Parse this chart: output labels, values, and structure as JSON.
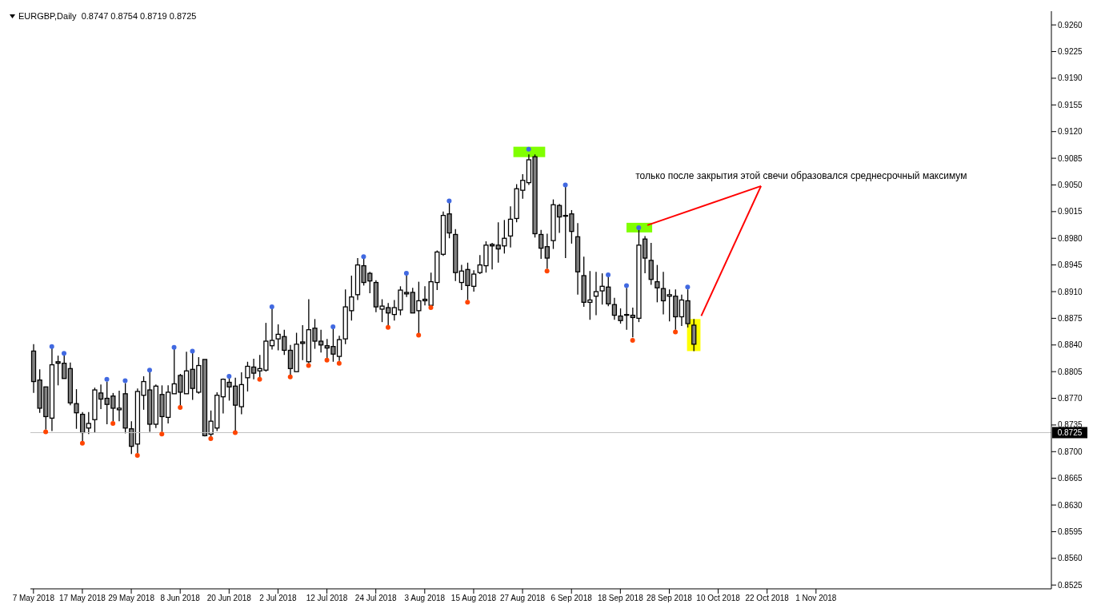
{
  "chart_data": {
    "type": "candlestick",
    "title": "EURGBP,Daily  0.8747 0.8754 0.8719 0.8725",
    "annotations": [
      "только после закрытия этой свечи образовался среднесрочный максимум"
    ],
    "categories": [
      "7 May 2018",
      null,
      null,
      null,
      null,
      null,
      null,
      null,
      "17 May 2018",
      null,
      null,
      null,
      null,
      null,
      null,
      null,
      "29 May 2018",
      null,
      null,
      null,
      null,
      null,
      null,
      null,
      "8 Jun 2018",
      null,
      null,
      null,
      null,
      null,
      null,
      null,
      "20 Jun 2018",
      null,
      null,
      null,
      null,
      null,
      null,
      null,
      "2 Jul 2018",
      null,
      null,
      null,
      null,
      null,
      null,
      null,
      "12 Jul 2018",
      null,
      null,
      null,
      null,
      null,
      null,
      null,
      "24 Jul 2018",
      null,
      null,
      null,
      null,
      null,
      null,
      null,
      "3 Aug 2018",
      null,
      null,
      null,
      null,
      null,
      null,
      null,
      "15 Aug 2018",
      null,
      null,
      null,
      null,
      null,
      null,
      null,
      "27 Aug 2018",
      null,
      null,
      null,
      null,
      null,
      null,
      null,
      "6 Sep 2018",
      null,
      null,
      null,
      null,
      null,
      null,
      null,
      "18 Sep 2018",
      null,
      null,
      null,
      null,
      null,
      null,
      null,
      "28 Sep 2018",
      null,
      null,
      null,
      null,
      null,
      null,
      null,
      "10 Oct 2018",
      null,
      null,
      null,
      null,
      null,
      null,
      null,
      "22 Oct 2018",
      null,
      null,
      null,
      null,
      null,
      null,
      null,
      "1 Nov 2018",
      null,
      null,
      null,
      null,
      null,
      null,
      null,
      null,
      null,
      null,
      null,
      null,
      null,
      null,
      null,
      null,
      null,
      null,
      null,
      null,
      null,
      null,
      null,
      null,
      null,
      null,
      null,
      null,
      null,
      null,
      null,
      null,
      null,
      null,
      null,
      null,
      null,
      null
    ],
    "ohlc": [
      [
        0.8832,
        0.8841,
        0.8777,
        0.8792
      ],
      [
        0.8794,
        0.8808,
        0.8751,
        0.8757
      ],
      [
        0.8785,
        0.8785,
        0.8729,
        0.8746
      ],
      [
        0.8744,
        0.8836,
        0.8727,
        0.8814
      ],
      [
        0.8818,
        0.8826,
        0.8787,
        0.8816
      ],
      [
        0.8816,
        0.8827,
        0.8796,
        0.8796
      ],
      [
        0.8809,
        0.8817,
        0.8761,
        0.8764
      ],
      [
        0.8763,
        0.8782,
        0.873,
        0.8751
      ],
      [
        0.8749,
        0.8752,
        0.8714,
        0.8725
      ],
      [
        0.8731,
        0.8752,
        0.8723,
        0.8737
      ],
      [
        0.8742,
        0.8784,
        0.8725,
        0.8781
      ],
      [
        0.8777,
        0.8788,
        0.8756,
        0.8769
      ],
      [
        0.877,
        0.8792,
        0.8736,
        0.8762
      ],
      [
        0.8773,
        0.8777,
        0.874,
        0.8757
      ],
      [
        0.8755,
        0.878,
        0.874,
        0.8757
      ],
      [
        0.8776,
        0.879,
        0.8724,
        0.8731
      ],
      [
        0.873,
        0.874,
        0.8697,
        0.8707
      ],
      [
        0.871,
        0.8783,
        0.8698,
        0.8779
      ],
      [
        0.8774,
        0.8799,
        0.8755,
        0.8792
      ],
      [
        0.8781,
        0.8804,
        0.8726,
        0.8736
      ],
      [
        0.8736,
        0.8788,
        0.8731,
        0.8786
      ],
      [
        0.8775,
        0.8787,
        0.8726,
        0.8746
      ],
      [
        0.8745,
        0.8787,
        0.8737,
        0.8778
      ],
      [
        0.8776,
        0.8835,
        0.8776,
        0.8789
      ],
      [
        0.88,
        0.8802,
        0.876,
        0.8778
      ],
      [
        0.8776,
        0.8831,
        0.8776,
        0.8806
      ],
      [
        0.8808,
        0.883,
        0.8768,
        0.8783
      ],
      [
        0.8778,
        0.8824,
        0.8776,
        0.8813
      ],
      [
        0.8821,
        0.8821,
        0.872,
        0.8721
      ],
      [
        0.8723,
        0.8754,
        0.8719,
        0.874
      ],
      [
        0.8731,
        0.8778,
        0.8727,
        0.8774
      ],
      [
        0.8772,
        0.8796,
        0.875,
        0.8795
      ],
      [
        0.8791,
        0.8797,
        0.8767,
        0.8785
      ],
      [
        0.8786,
        0.8797,
        0.8727,
        0.8761
      ],
      [
        0.8759,
        0.8804,
        0.8749,
        0.8788
      ],
      [
        0.8797,
        0.8818,
        0.8779,
        0.8812
      ],
      [
        0.8811,
        0.8822,
        0.8795,
        0.8803
      ],
      [
        0.8806,
        0.8827,
        0.8797,
        0.8809
      ],
      [
        0.8807,
        0.8869,
        0.8805,
        0.8845
      ],
      [
        0.8839,
        0.8888,
        0.8834,
        0.8846
      ],
      [
        0.8848,
        0.8867,
        0.8833,
        0.8854
      ],
      [
        0.8851,
        0.886,
        0.8827,
        0.8833
      ],
      [
        0.8833,
        0.884,
        0.88,
        0.8809
      ],
      [
        0.8805,
        0.8856,
        0.8805,
        0.8841
      ],
      [
        0.8844,
        0.8866,
        0.882,
        0.8842
      ],
      [
        0.8818,
        0.89,
        0.8816,
        0.886
      ],
      [
        0.8862,
        0.8874,
        0.8835,
        0.8845
      ],
      [
        0.8845,
        0.886,
        0.883,
        0.884
      ],
      [
        0.8839,
        0.8848,
        0.8822,
        0.8836
      ],
      [
        0.8838,
        0.8862,
        0.8818,
        0.8828
      ],
      [
        0.8825,
        0.8852,
        0.8819,
        0.8847
      ],
      [
        0.8848,
        0.8913,
        0.8841,
        0.889
      ],
      [
        0.8885,
        0.8931,
        0.8872,
        0.8903
      ],
      [
        0.8906,
        0.8954,
        0.8899,
        0.8945
      ],
      [
        0.8944,
        0.8954,
        0.8918,
        0.8922
      ],
      [
        0.8934,
        0.8936,
        0.8908,
        0.8924
      ],
      [
        0.8922,
        0.8925,
        0.8883,
        0.889
      ],
      [
        0.8887,
        0.89,
        0.887,
        0.8891
      ],
      [
        0.8889,
        0.8895,
        0.8865,
        0.8882
      ],
      [
        0.888,
        0.8899,
        0.8872,
        0.8889
      ],
      [
        0.8886,
        0.8917,
        0.8879,
        0.8912
      ],
      [
        0.8909,
        0.8932,
        0.8903,
        0.8907
      ],
      [
        0.8909,
        0.8915,
        0.8882,
        0.8882
      ],
      [
        0.8885,
        0.8923,
        0.8855,
        0.8898
      ],
      [
        0.89,
        0.8917,
        0.8892,
        0.8898
      ],
      [
        0.8892,
        0.8935,
        0.8891,
        0.8923
      ],
      [
        0.8922,
        0.8964,
        0.8912,
        0.8962
      ],
      [
        0.8959,
        0.9015,
        0.8957,
        0.901
      ],
      [
        0.9012,
        0.9027,
        0.898,
        0.8987
      ],
      [
        0.8985,
        0.8992,
        0.8924,
        0.8935
      ],
      [
        0.8922,
        0.8945,
        0.8912,
        0.8937
      ],
      [
        0.8939,
        0.8948,
        0.8899,
        0.8918
      ],
      [
        0.8917,
        0.8938,
        0.891,
        0.8933
      ],
      [
        0.8935,
        0.8958,
        0.8933,
        0.8945
      ],
      [
        0.8944,
        0.8976,
        0.8935,
        0.8971
      ],
      [
        0.8972,
        0.8974,
        0.8939,
        0.897
      ],
      [
        0.8971,
        0.9001,
        0.8948,
        0.8966
      ],
      [
        0.897,
        0.9004,
        0.896,
        0.898
      ],
      [
        0.8983,
        0.9022,
        0.8968,
        0.9005
      ],
      [
        0.9006,
        0.9051,
        0.9001,
        0.9045
      ],
      [
        0.9043,
        0.9064,
        0.9032,
        0.9056
      ],
      [
        0.9053,
        0.909,
        0.905,
        0.9083
      ],
      [
        0.9087,
        0.909,
        0.8981,
        0.8986
      ],
      [
        0.8985,
        0.8991,
        0.8953,
        0.8967
      ],
      [
        0.8969,
        0.8986,
        0.894,
        0.8954
      ],
      [
        0.8977,
        0.9031,
        0.8966,
        0.9024
      ],
      [
        0.9023,
        0.9025,
        0.8987,
        0.9008
      ],
      [
        0.901,
        0.9048,
        0.8954,
        0.901
      ],
      [
        0.9012,
        0.9017,
        0.8973,
        0.8989
      ],
      [
        0.8982,
        0.9,
        0.8906,
        0.8936
      ],
      [
        0.8931,
        0.8956,
        0.889,
        0.8896
      ],
      [
        0.8896,
        0.8937,
        0.8873,
        0.8899
      ],
      [
        0.8904,
        0.8936,
        0.8879,
        0.891
      ],
      [
        0.8911,
        0.8934,
        0.8893,
        0.8917
      ],
      [
        0.8916,
        0.8931,
        0.8891,
        0.8894
      ],
      [
        0.8893,
        0.8902,
        0.8873,
        0.8879
      ],
      [
        0.8878,
        0.8888,
        0.8868,
        0.8872
      ],
      [
        0.888,
        0.8915,
        0.886,
        0.8879
      ],
      [
        0.8879,
        0.8889,
        0.885,
        0.8876
      ],
      [
        0.8875,
        0.8991,
        0.887,
        0.8971
      ],
      [
        0.8979,
        0.8983,
        0.8934,
        0.8954
      ],
      [
        0.8951,
        0.8974,
        0.8919,
        0.8926
      ],
      [
        0.8923,
        0.8945,
        0.8896,
        0.8915
      ],
      [
        0.8914,
        0.8936,
        0.888,
        0.8898
      ],
      [
        0.8904,
        0.8913,
        0.8871,
        0.8906
      ],
      [
        0.8904,
        0.8913,
        0.886,
        0.8877
      ],
      [
        0.8877,
        0.8906,
        0.8865,
        0.8899
      ],
      [
        0.8898,
        0.8913,
        0.8863,
        0.8868
      ],
      [
        0.8866,
        0.8874,
        0.8832,
        0.8841
      ],
      null,
      null,
      null,
      null,
      null,
      null,
      null,
      null,
      null,
      null,
      null,
      null,
      null,
      null,
      null,
      null,
      null,
      null,
      null,
      null,
      null,
      null,
      null,
      null,
      null,
      null,
      null,
      null,
      null,
      null,
      null,
      null,
      null,
      null,
      null,
      null,
      null,
      null,
      null,
      null,
      null,
      null,
      null,
      null,
      null,
      null,
      null,
      null,
      null,
      null,
      null,
      null,
      null,
      null,
      null,
      null,
      null,
      null
    ],
    "series": [
      {
        "type": "scatter",
        "color": "#4169e1",
        "values": [
          null,
          null,
          null,
          0.8838,
          null,
          0.8829,
          null,
          null,
          null,
          null,
          null,
          null,
          0.8795,
          null,
          null,
          0.8793,
          null,
          null,
          null,
          0.8807,
          null,
          null,
          null,
          0.8837,
          null,
          null,
          0.8832,
          null,
          null,
          null,
          null,
          null,
          0.8799,
          null,
          null,
          null,
          null,
          null,
          null,
          0.889,
          null,
          null,
          null,
          null,
          null,
          null,
          null,
          null,
          null,
          0.8864,
          null,
          null,
          null,
          null,
          0.8956,
          null,
          null,
          null,
          null,
          null,
          null,
          0.8934,
          null,
          null,
          null,
          null,
          null,
          null,
          0.9029,
          null,
          null,
          null,
          null,
          null,
          null,
          null,
          null,
          null,
          null,
          null,
          null,
          0.9097,
          null,
          null,
          null,
          null,
          null,
          0.905,
          null,
          null,
          null,
          null,
          null,
          null,
          0.8932,
          null,
          null,
          0.8918,
          null,
          0.8994,
          null,
          null,
          null,
          null,
          null,
          null,
          null,
          0.8916,
          null,
          null,
          null,
          null,
          null,
          null,
          null,
          null,
          null,
          null,
          null,
          null,
          null,
          null,
          null,
          null,
          null,
          null,
          null,
          null,
          null,
          null,
          null,
          null,
          null,
          null,
          null,
          null,
          null,
          null,
          null,
          null,
          null,
          null,
          null,
          null,
          null,
          null,
          null,
          null,
          null,
          null,
          null,
          null,
          null,
          null,
          null,
          null,
          null,
          null,
          null,
          null,
          null,
          null,
          null,
          null,
          null,
          null,
          null
        ]
      },
      {
        "type": "scatter",
        "color": "#ff4500",
        "values": [
          null,
          null,
          0.8726,
          null,
          null,
          null,
          null,
          null,
          0.8711,
          null,
          null,
          null,
          null,
          0.8737,
          null,
          null,
          null,
          0.8695,
          null,
          null,
          null,
          0.8723,
          null,
          null,
          0.8758,
          null,
          null,
          null,
          null,
          0.8717,
          null,
          null,
          null,
          0.8725,
          null,
          null,
          null,
          0.8795,
          null,
          null,
          null,
          null,
          0.8798,
          null,
          null,
          0.8813,
          null,
          null,
          0.882,
          null,
          0.8816,
          null,
          null,
          null,
          null,
          null,
          null,
          null,
          0.8863,
          null,
          null,
          null,
          null,
          0.8853,
          null,
          0.8889,
          null,
          null,
          null,
          null,
          null,
          0.8896,
          null,
          null,
          null,
          null,
          null,
          null,
          null,
          null,
          null,
          null,
          null,
          null,
          0.8937,
          null,
          null,
          null,
          null,
          null,
          null,
          null,
          null,
          null,
          null,
          null,
          null,
          null,
          0.8846,
          null,
          null,
          null,
          null,
          null,
          null,
          0.8857,
          null,
          null,
          null,
          null,
          null,
          null,
          null,
          null,
          null,
          null,
          null,
          null,
          null,
          null,
          null,
          null,
          null,
          null,
          null,
          null,
          null,
          null,
          null,
          null,
          null,
          null,
          null,
          null,
          null,
          null,
          null,
          null,
          null,
          null,
          null,
          null,
          null,
          null,
          null,
          null,
          null,
          null,
          null,
          null,
          null,
          null,
          null,
          null,
          null,
          null,
          null,
          null,
          null,
          null,
          null,
          null,
          null,
          null,
          null,
          null,
          null
        ]
      }
    ],
    "marker": "circle",
    "ylim": [
      0.852,
      0.9278
    ],
    "yticks": [
      0.8525,
      {
        "value": 0.856,
        "label": "0.8560"
      },
      0.8595,
      {
        "value": 0.863,
        "label": "0.8630"
      },
      0.8665,
      {
        "value": 0.87,
        "label": "0.8700"
      },
      0.8735,
      {
        "value": 0.877,
        "label": "0.8770"
      },
      0.8805,
      {
        "value": 0.884,
        "label": "0.8840"
      },
      0.8875,
      {
        "value": 0.891,
        "label": "0.8910"
      },
      0.8945,
      {
        "value": 0.898,
        "label": "0.8980"
      },
      0.9015,
      {
        "value": 0.905,
        "label": "0.9050"
      },
      0.9085,
      {
        "value": 0.912,
        "label": "0.9120"
      },
      0.9155,
      {
        "value": 0.919,
        "label": "0.9190"
      },
      0.9225,
      {
        "value": 0.926,
        "label": "0.9260"
      }
    ],
    "ref_lines": [
      {
        "axis": "y",
        "value": 0.8725,
        "label": "0.8725",
        "color": "#c0c0c0"
      }
    ]
  }
}
